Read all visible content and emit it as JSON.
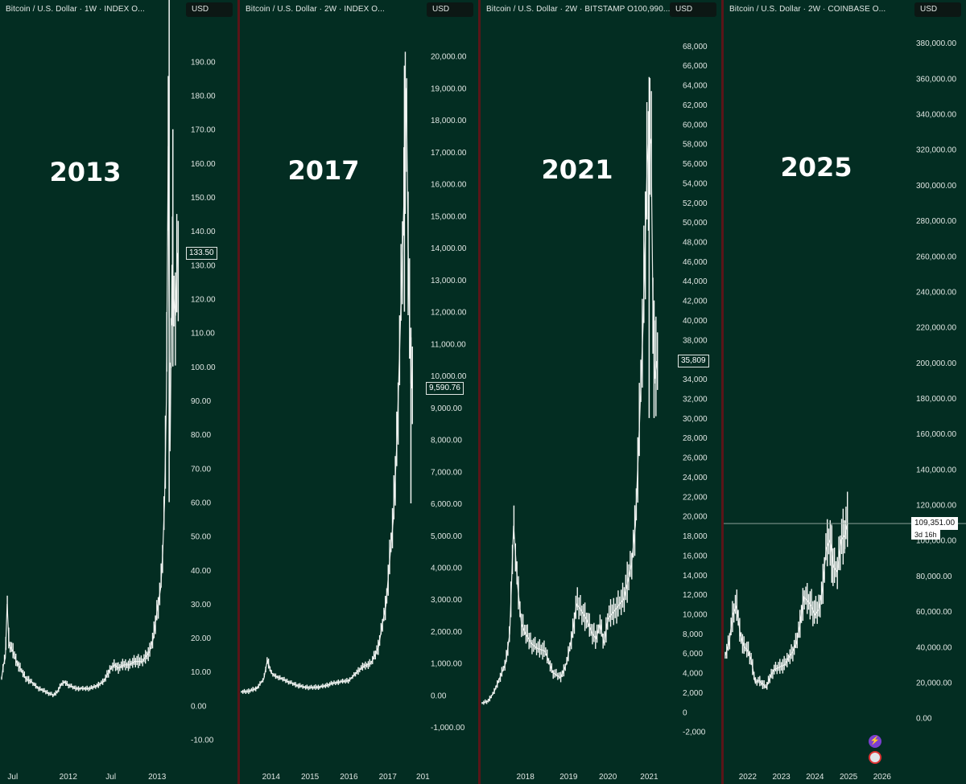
{
  "chart_data": [
    {
      "type": "candlestick",
      "header": "Bitcoin / U.S. Dollar · 1W · INDEX  O...",
      "currency": "USD",
      "annotation": "2013",
      "y_ticks": [
        -10,
        0,
        10,
        20,
        30,
        40,
        50,
        60,
        70,
        80,
        90,
        100,
        110,
        120,
        130,
        140,
        150,
        160,
        170,
        180,
        190
      ],
      "y_tick_labels": [
        "-10.00",
        "0.00",
        "10.00",
        "20.00",
        "30.00",
        "40.00",
        "50.00",
        "60.00",
        "70.00",
        "80.00",
        "90.00",
        "100.00",
        "110.00",
        "120.00",
        "130.00",
        "140.00",
        "150.00",
        "160.00",
        "170.00",
        "180.00",
        "190.00"
      ],
      "ylim": [
        -12,
        201
      ],
      "x_tick_labels": [
        "Jul",
        "2012",
        "Jul",
        "2013"
      ],
      "x_tick_positions": [
        0.06,
        0.36,
        0.59,
        0.84
      ],
      "last_price_label": "133.50",
      "last_price": 133.5,
      "points": [
        [
          0,
          8
        ],
        [
          0.01,
          12
        ],
        [
          0.02,
          14
        ],
        [
          0.03,
          30
        ],
        [
          0.04,
          18
        ],
        [
          0.06,
          16
        ],
        [
          0.08,
          13
        ],
        [
          0.1,
          11
        ],
        [
          0.13,
          8
        ],
        [
          0.16,
          7
        ],
        [
          0.2,
          5
        ],
        [
          0.24,
          4
        ],
        [
          0.28,
          3
        ],
        [
          0.3,
          4
        ],
        [
          0.32,
          6
        ],
        [
          0.34,
          7
        ],
        [
          0.36,
          6
        ],
        [
          0.4,
          5
        ],
        [
          0.44,
          5
        ],
        [
          0.48,
          5
        ],
        [
          0.52,
          6
        ],
        [
          0.55,
          7
        ],
        [
          0.57,
          9
        ],
        [
          0.59,
          11
        ],
        [
          0.61,
          12
        ],
        [
          0.63,
          11
        ],
        [
          0.66,
          12
        ],
        [
          0.69,
          12
        ],
        [
          0.72,
          13
        ],
        [
          0.76,
          13
        ],
        [
          0.8,
          16
        ],
        [
          0.82,
          20
        ],
        [
          0.84,
          28
        ],
        [
          0.86,
          35
        ],
        [
          0.87,
          45
        ],
        [
          0.88,
          60
        ],
        [
          0.89,
          90
        ],
        [
          0.9,
          165
        ],
        [
          0.905,
          100
        ],
        [
          0.91,
          75
        ],
        [
          0.92,
          130
        ],
        [
          0.93,
          120
        ],
        [
          0.94,
          115
        ],
        [
          0.95,
          133.5
        ]
      ],
      "spikes": [
        [
          0.905,
          60,
          230
        ],
        [
          0.925,
          100,
          170
        ]
      ]
    },
    {
      "type": "candlestick",
      "header": "Bitcoin / U.S. Dollar · 2W · INDEX  O...",
      "currency": "USD",
      "annotation": "2017",
      "y_ticks": [
        -1000,
        0,
        1000,
        2000,
        3000,
        4000,
        5000,
        6000,
        7000,
        8000,
        9000,
        10000,
        11000,
        12000,
        13000,
        14000,
        15000,
        16000,
        17000,
        18000,
        19000,
        20000
      ],
      "y_tick_labels": [
        "-1,000.00",
        "0.00",
        "1,000.00",
        "2,000.00",
        "3,000.00",
        "4,000.00",
        "5,000.00",
        "6,000.00",
        "7,000.00",
        "8,000.00",
        "9,000.00",
        "10,000.00",
        "11,000.00",
        "12,000.00",
        "13,000.00",
        "14,000.00",
        "15,000.00",
        "16,000.00",
        "17,000.00",
        "18,000.00",
        "19,000.00",
        "20,000.00"
      ],
      "ylim": [
        -1600,
        21000
      ],
      "x_tick_labels": [
        "2014",
        "2015",
        "2016",
        "2017",
        "201"
      ],
      "x_tick_positions": [
        0.16,
        0.37,
        0.58,
        0.79,
        0.98
      ],
      "last_price_label": "9,590.76",
      "last_price": 9590.76,
      "points": [
        [
          0,
          100
        ],
        [
          0.04,
          120
        ],
        [
          0.08,
          200
        ],
        [
          0.12,
          500
        ],
        [
          0.14,
          1100
        ],
        [
          0.16,
          700
        ],
        [
          0.18,
          600
        ],
        [
          0.22,
          500
        ],
        [
          0.26,
          400
        ],
        [
          0.3,
          300
        ],
        [
          0.34,
          250
        ],
        [
          0.38,
          230
        ],
        [
          0.42,
          250
        ],
        [
          0.46,
          300
        ],
        [
          0.5,
          380
        ],
        [
          0.54,
          420
        ],
        [
          0.58,
          450
        ],
        [
          0.62,
          700
        ],
        [
          0.66,
          900
        ],
        [
          0.7,
          1000
        ],
        [
          0.74,
          1500
        ],
        [
          0.76,
          2200
        ],
        [
          0.78,
          2800
        ],
        [
          0.8,
          4200
        ],
        [
          0.82,
          5500
        ],
        [
          0.84,
          8000
        ],
        [
          0.86,
          12000
        ],
        [
          0.88,
          16000
        ],
        [
          0.89,
          19000
        ],
        [
          0.9,
          14000
        ],
        [
          0.91,
          11000
        ],
        [
          0.92,
          9600
        ]
      ],
      "spikes": [
        [
          0.88,
          12000,
          19700
        ],
        [
          0.915,
          6000,
          11500
        ]
      ]
    },
    {
      "type": "candlestick",
      "header": "Bitcoin / U.S. Dollar · 2W · BITSTAMP  O100,990....",
      "currency": "USD",
      "annotation": "2021",
      "y_ticks": [
        -2000,
        0,
        2000,
        4000,
        6000,
        8000,
        10000,
        12000,
        14000,
        16000,
        18000,
        20000,
        22000,
        24000,
        26000,
        28000,
        30000,
        32000,
        34000,
        36000,
        38000,
        40000,
        42000,
        44000,
        46000,
        48000,
        50000,
        52000,
        54000,
        56000,
        58000,
        60000,
        62000,
        64000,
        66000,
        68000
      ],
      "y_tick_labels": [
        "-2,000",
        "0",
        "2,000",
        "4,000",
        "6,000",
        "8,000",
        "10,000",
        "12,000",
        "14,000",
        "16,000",
        "18,000",
        "20,000",
        "22,000",
        "24,000",
        "26,000",
        "28,000",
        "30,000",
        "32,000",
        "34,000",
        "36,000",
        "38,000",
        "40,000",
        "42,000",
        "44,000",
        "46,000",
        "48,000",
        "50,000",
        "52,000",
        "54,000",
        "56,000",
        "58,000",
        "60,000",
        "62,000",
        "64,000",
        "66,000",
        "68,000"
      ],
      "ylim": [
        -3500,
        70200
      ],
      "x_tick_labels": [
        "2018",
        "2019",
        "2020",
        "2021"
      ],
      "x_tick_positions": [
        0.22,
        0.44,
        0.64,
        0.85
      ],
      "last_price_label": "35,809",
      "last_price": 35809,
      "points": [
        [
          0,
          900
        ],
        [
          0.03,
          1100
        ],
        [
          0.06,
          2000
        ],
        [
          0.09,
          3500
        ],
        [
          0.12,
          5000
        ],
        [
          0.14,
          8000
        ],
        [
          0.16,
          19000
        ],
        [
          0.18,
          13000
        ],
        [
          0.2,
          9000
        ],
        [
          0.22,
          8000
        ],
        [
          0.25,
          7000
        ],
        [
          0.28,
          6500
        ],
        [
          0.32,
          6200
        ],
        [
          0.36,
          4000
        ],
        [
          0.4,
          3500
        ],
        [
          0.43,
          5000
        ],
        [
          0.46,
          8000
        ],
        [
          0.48,
          11000
        ],
        [
          0.5,
          10500
        ],
        [
          0.53,
          9500
        ],
        [
          0.56,
          8000
        ],
        [
          0.58,
          7500
        ],
        [
          0.6,
          9000
        ],
        [
          0.62,
          7000
        ],
        [
          0.64,
          9500
        ],
        [
          0.68,
          10500
        ],
        [
          0.72,
          11500
        ],
        [
          0.76,
          15000
        ],
        [
          0.78,
          19000
        ],
        [
          0.8,
          29000
        ],
        [
          0.82,
          40000
        ],
        [
          0.84,
          56000
        ],
        [
          0.85,
          59000
        ],
        [
          0.86,
          58000
        ],
        [
          0.87,
          40000
        ],
        [
          0.88,
          34000
        ],
        [
          0.89,
          35809
        ]
      ],
      "spikes": [
        [
          0.85,
          30000,
          64800
        ],
        [
          0.875,
          30000,
          42000
        ]
      ]
    },
    {
      "type": "candlestick",
      "header": "Bitcoin / U.S. Dollar · 2W · COINBASE  O...",
      "currency": "USD",
      "annotation": "2025",
      "y_ticks": [
        0,
        20000,
        40000,
        60000,
        80000,
        100000,
        120000,
        140000,
        160000,
        180000,
        200000,
        220000,
        240000,
        260000,
        280000,
        300000,
        320000,
        340000,
        360000,
        380000
      ],
      "y_tick_labels": [
        "0.00",
        "20,000.00",
        "40,000.00",
        "60,000.00",
        "80,000.00",
        "100,000.00",
        "120,000.00",
        "140,000.00",
        "160,000.00",
        "180,000.00",
        "200,000.00",
        "220,000.00",
        "240,000.00",
        "260,000.00",
        "280,000.00",
        "300,000.00",
        "320,000.00",
        "340,000.00",
        "360,000.00",
        "380,000.00"
      ],
      "ylim": [
        -16000,
        390500
      ],
      "x_tick_labels": [
        "2022",
        "2023",
        "2024",
        "2025",
        "2026"
      ],
      "x_tick_positions": [
        0.12,
        0.3,
        0.48,
        0.66,
        0.84
      ],
      "last_price_label": "109,351.00",
      "last_price": 109351,
      "countdown_label": "3d 16h",
      "points": [
        [
          0,
          35000
        ],
        [
          0.02,
          42000
        ],
        [
          0.04,
          58000
        ],
        [
          0.06,
          63000
        ],
        [
          0.08,
          47000
        ],
        [
          0.1,
          40000
        ],
        [
          0.12,
          38000
        ],
        [
          0.14,
          32000
        ],
        [
          0.16,
          20000
        ],
        [
          0.18,
          21000
        ],
        [
          0.2,
          19000
        ],
        [
          0.22,
          17000
        ],
        [
          0.24,
          23000
        ],
        [
          0.26,
          27000
        ],
        [
          0.28,
          28000
        ],
        [
          0.3,
          29000
        ],
        [
          0.32,
          30000
        ],
        [
          0.34,
          34000
        ],
        [
          0.36,
          37000
        ],
        [
          0.38,
          42000
        ],
        [
          0.4,
          52000
        ],
        [
          0.42,
          68000
        ],
        [
          0.44,
          66000
        ],
        [
          0.46,
          63000
        ],
        [
          0.48,
          58000
        ],
        [
          0.5,
          61000
        ],
        [
          0.52,
          72000
        ],
        [
          0.54,
          95000
        ],
        [
          0.56,
          100000
        ],
        [
          0.58,
          85000
        ],
        [
          0.6,
          82000
        ],
        [
          0.62,
          100000
        ],
        [
          0.64,
          103000
        ],
        [
          0.655,
          109351
        ]
      ],
      "spikes": [
        [
          0.57,
          76000,
          108000
        ],
        [
          0.64,
          95000,
          111000
        ]
      ]
    }
  ]
}
